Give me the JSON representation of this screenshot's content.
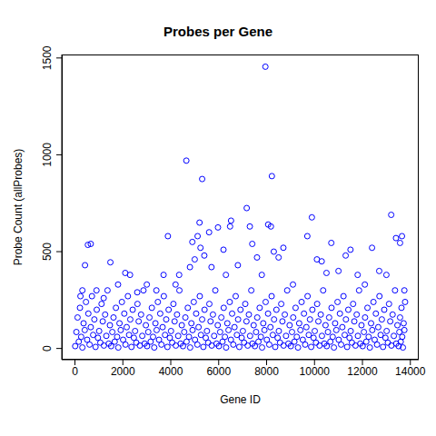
{
  "chart_data": {
    "type": "scatter",
    "title": "Probes per Gene",
    "xlabel": "Gene ID",
    "ylabel": "Probe Count (allProbes)",
    "color": "#0000ff",
    "marker": "circle_open",
    "xlim": [
      -550,
      14350
    ],
    "ylim": [
      -58,
      1518
    ],
    "xticks": [
      0,
      2000,
      4000,
      6000,
      8000,
      10000,
      12000,
      14000
    ],
    "yticks": [
      0,
      500,
      1000,
      1500
    ],
    "x": [
      10,
      60,
      110,
      160,
      210,
      260,
      310,
      360,
      410,
      460,
      510,
      560,
      610,
      660,
      710,
      760,
      810,
      860,
      910,
      960,
      1010,
      1060,
      1110,
      1160,
      1210,
      1260,
      1310,
      1360,
      1410,
      1460,
      1510,
      1560,
      1610,
      1660,
      1710,
      1760,
      1810,
      1860,
      1910,
      1960,
      2010,
      2060,
      2110,
      2160,
      2210,
      2260,
      2310,
      2360,
      2410,
      2460,
      2510,
      2560,
      2610,
      2660,
      2710,
      2760,
      2810,
      2860,
      2910,
      2960,
      3010,
      3060,
      3110,
      3160,
      3210,
      3260,
      3310,
      3360,
      3410,
      3460,
      3510,
      3560,
      3610,
      3660,
      3710,
      3760,
      3810,
      3860,
      3910,
      3960,
      4010,
      4060,
      4110,
      4160,
      4210,
      4260,
      4310,
      4360,
      4410,
      4460,
      4510,
      4560,
      4610,
      4660,
      4710,
      4760,
      4810,
      4860,
      4910,
      4960,
      5010,
      5060,
      5110,
      5160,
      5210,
      5260,
      5310,
      5360,
      5410,
      5460,
      5510,
      5560,
      5610,
      5660,
      5710,
      5760,
      5810,
      5860,
      5910,
      5960,
      6010,
      6060,
      6110,
      6160,
      6210,
      6260,
      6310,
      6360,
      6410,
      6460,
      6510,
      6560,
      6610,
      6660,
      6710,
      6760,
      6810,
      6860,
      6910,
      6960,
      7010,
      7060,
      7110,
      7160,
      7210,
      7260,
      7310,
      7360,
      7410,
      7460,
      7510,
      7560,
      7610,
      7660,
      7710,
      7760,
      7810,
      7860,
      7910,
      7960,
      8010,
      8060,
      8110,
      8160,
      8210,
      8260,
      8310,
      8360,
      8410,
      8460,
      8510,
      8560,
      8610,
      8660,
      8710,
      8760,
      8810,
      8860,
      8910,
      8960,
      9010,
      9060,
      9110,
      9160,
      9210,
      9260,
      9310,
      9360,
      9410,
      9460,
      9510,
      9560,
      9610,
      9660,
      9710,
      9760,
      9810,
      9860,
      9910,
      9960,
      10010,
      10060,
      10110,
      10160,
      10210,
      10260,
      10310,
      10360,
      10410,
      10460,
      10510,
      10560,
      10610,
      10660,
      10710,
      10760,
      10810,
      10860,
      10910,
      10960,
      11010,
      11060,
      11110,
      11160,
      11210,
      11260,
      11310,
      11360,
      11410,
      11460,
      11510,
      11560,
      11610,
      11660,
      11710,
      11760,
      11810,
      11860,
      11910,
      11960,
      12010,
      12060,
      12110,
      12160,
      12210,
      12260,
      12310,
      12360,
      12410,
      12460,
      12510,
      12560,
      12610,
      12660,
      12710,
      12760,
      12810,
      12860,
      12910,
      12960,
      13010,
      13060,
      13110,
      13160,
      13210,
      13260,
      13310,
      13360,
      13410,
      13460,
      13510,
      13540,
      13570,
      13600,
      13630,
      13660,
      13690,
      13720,
      13750,
      13780,
      230,
      310,
      420,
      540,
      660,
      900,
      1200,
      1480,
      1800,
      2100,
      2300,
      2600,
      3000,
      3400,
      3700,
      3880,
      4200,
      4350,
      4650,
      4800,
      4900,
      5000,
      5120,
      5200,
      5240,
      5310,
      5400,
      5600,
      5700,
      5970,
      6200,
      6300,
      6475,
      6515,
      6800,
      7170,
      7300,
      7400,
      7600,
      7800,
      7950,
      8065,
      8180,
      8220,
      8300,
      8500,
      8700,
      9100,
      9700,
      9890,
      10100,
      10300,
      10500,
      10700,
      11000,
      11300,
      11500,
      11800,
      12100,
      12400,
      12700,
      13000,
      13200,
      13400,
      13570,
      13650,
      13750
    ],
    "values": [
      12,
      85,
      160,
      35,
      210,
      60,
      5,
      130,
      95,
      240,
      45,
      180,
      20,
      110,
      270,
      70,
      150,
      8,
      200,
      55,
      90,
      30,
      230,
      140,
      15,
      175,
      65,
      300,
      25,
      120,
      12,
      85,
      160,
      35,
      210,
      60,
      5,
      130,
      95,
      240,
      45,
      180,
      20,
      110,
      270,
      70,
      150,
      8,
      200,
      55,
      90,
      30,
      230,
      140,
      15,
      175,
      65,
      300,
      25,
      120,
      12,
      85,
      160,
      35,
      210,
      60,
      5,
      130,
      95,
      240,
      45,
      180,
      20,
      110,
      270,
      70,
      150,
      8,
      200,
      55,
      90,
      30,
      230,
      140,
      15,
      175,
      65,
      300,
      25,
      120,
      12,
      85,
      160,
      35,
      210,
      60,
      5,
      130,
      95,
      240,
      45,
      180,
      20,
      110,
      270,
      70,
      150,
      8,
      200,
      55,
      90,
      30,
      230,
      140,
      15,
      175,
      65,
      300,
      25,
      120,
      12,
      85,
      160,
      35,
      210,
      60,
      5,
      130,
      95,
      240,
      45,
      180,
      20,
      110,
      270,
      70,
      150,
      8,
      200,
      55,
      90,
      30,
      230,
      140,
      15,
      175,
      65,
      300,
      25,
      120,
      12,
      85,
      160,
      35,
      210,
      60,
      5,
      130,
      95,
      240,
      45,
      180,
      20,
      110,
      270,
      70,
      150,
      8,
      200,
      55,
      90,
      30,
      230,
      140,
      15,
      175,
      65,
      300,
      25,
      120,
      12,
      85,
      160,
      35,
      210,
      60,
      5,
      130,
      95,
      240,
      45,
      180,
      20,
      110,
      270,
      70,
      150,
      8,
      200,
      55,
      90,
      30,
      230,
      140,
      15,
      175,
      65,
      300,
      25,
      120,
      12,
      85,
      160,
      35,
      210,
      60,
      5,
      130,
      95,
      240,
      45,
      180,
      20,
      110,
      270,
      70,
      150,
      8,
      200,
      55,
      90,
      30,
      230,
      140,
      15,
      175,
      65,
      300,
      25,
      120,
      12,
      85,
      160,
      35,
      210,
      60,
      5,
      130,
      95,
      240,
      45,
      180,
      20,
      110,
      270,
      70,
      150,
      8,
      200,
      55,
      90,
      30,
      230,
      140,
      15,
      175,
      65,
      300,
      25,
      120,
      12,
      85,
      160,
      35,
      210,
      60,
      5,
      130,
      95,
      240,
      270,
      300,
      430,
      535,
      540,
      300,
      260,
      445,
      330,
      390,
      380,
      290,
      330,
      300,
      380,
      580,
      330,
      380,
      970,
      420,
      550,
      460,
      580,
      650,
      520,
      875,
      480,
      600,
      420,
      625,
      510,
      380,
      630,
      660,
      430,
      725,
      630,
      540,
      470,
      380,
      1455,
      640,
      630,
      890,
      500,
      470,
      520,
      330,
      580,
      677,
      460,
      450,
      390,
      545,
      400,
      480,
      510,
      380,
      330,
      520,
      400,
      380,
      690,
      570,
      545,
      580,
      300
    ]
  }
}
